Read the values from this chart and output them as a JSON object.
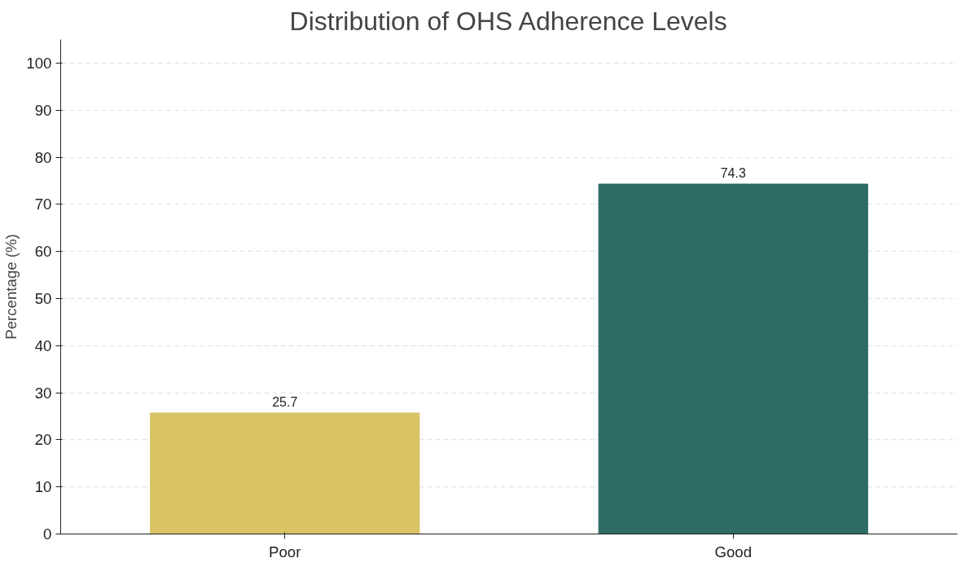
{
  "chart_data": {
    "type": "bar",
    "title": "Distribution of OHS Adherence Levels",
    "ylabel": "Percentage (%)",
    "categories": [
      "Poor",
      "Good"
    ],
    "values": [
      25.7,
      74.3
    ],
    "colors": [
      "#d9c364",
      "#2e6b65"
    ],
    "ylim": [
      0,
      105
    ],
    "yticks": [
      0,
      10,
      20,
      30,
      40,
      50,
      60,
      70,
      80,
      90,
      100
    ],
    "grid": "y",
    "data_labels": true
  }
}
